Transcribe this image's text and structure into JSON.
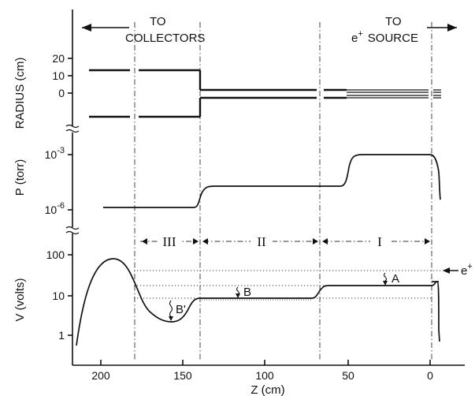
{
  "figure": {
    "arrow_left_line1": "TO",
    "arrow_left_line2": "COLLECTORS",
    "arrow_right_line1": "TO",
    "arrow_right_line2": "e",
    "arrow_right_superscript": "+",
    "arrow_right_line2_tail": "SOURCE",
    "x_axis_label": "Z (cm)",
    "x_ticks": [
      "200",
      "150",
      "100",
      "50",
      "0"
    ],
    "radius_panel": {
      "ylabel": "RADIUS (cm)",
      "ticks": [
        "20",
        "10",
        "0"
      ]
    },
    "pressure_panel": {
      "ylabel": "P (torr)",
      "tick_top_base": "10",
      "tick_top_exp": "-3",
      "tick_bottom_base": "10",
      "tick_bottom_exp": "-6"
    },
    "potential_panel": {
      "ylabel": "V (volts)",
      "ticks": [
        "100",
        "10",
        "1"
      ],
      "region_labels": [
        "III",
        "II",
        "I"
      ],
      "marker_A": "A",
      "marker_B": "B",
      "marker_Bprime": "B'",
      "incoming_label": "e",
      "incoming_superscript": "+"
    }
  }
}
